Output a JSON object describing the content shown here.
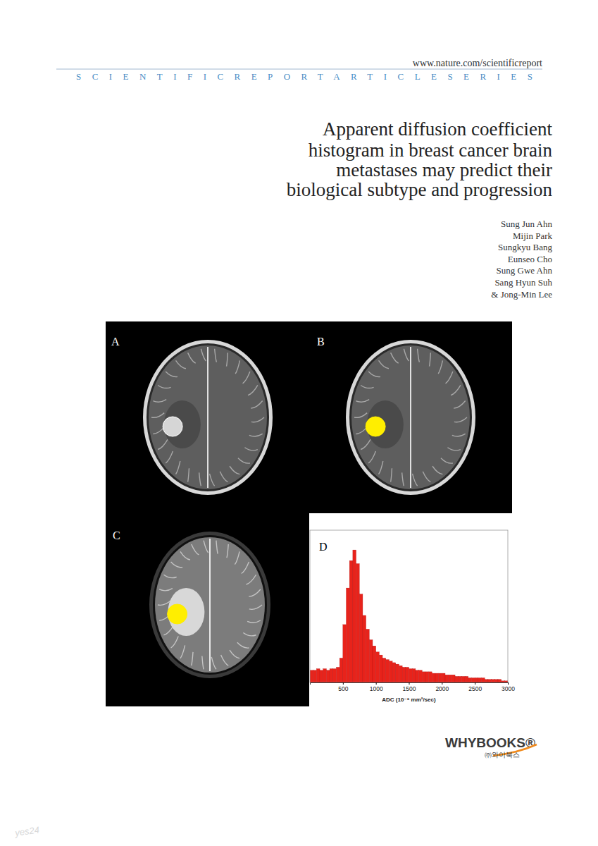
{
  "header": {
    "url": "www.nature.com/scientificreport",
    "series": "SCIENTIFICREPORTARTICLESERIES"
  },
  "title": [
    "Apparent diffusion coefficient",
    "histogram in breast cancer brain",
    "metastases may predict their",
    "biological subtype and progression"
  ],
  "authors": [
    "Sung Jun Ahn",
    "Mijin Park",
    "Sungkyu Bang",
    "Eunseo Cho",
    "Sung Gwe Ahn",
    "Sang Hyun Suh",
    "& Jong-Min Lee"
  ],
  "figure": {
    "panel_labels": [
      "A",
      "B",
      "C",
      "D"
    ]
  },
  "chart_data": {
    "type": "histogram",
    "x_label": "ADC (10⁻⁶ mm²/sec)",
    "bins": [
      0,
      50,
      100,
      150,
      200,
      250,
      300,
      350,
      400,
      450,
      500,
      550,
      600,
      650,
      700,
      750,
      800,
      850,
      900,
      950,
      1000,
      1050,
      1100,
      1150,
      1200,
      1250,
      1300,
      1350,
      1400,
      1450,
      1500,
      1550,
      1600,
      1650,
      1700,
      1750,
      1800,
      1850,
      1900,
      1950,
      2000,
      2050,
      2100,
      2150,
      2200,
      2250,
      2300,
      2350,
      2400,
      2450,
      2500,
      2550,
      2600,
      2650,
      2700,
      2750,
      2800,
      2850,
      2900,
      2950,
      3000
    ],
    "values": [
      8,
      8,
      9,
      8,
      9,
      8,
      9,
      9,
      10,
      16,
      38,
      62,
      80,
      87,
      78,
      58,
      44,
      35,
      28,
      24,
      20,
      18,
      16,
      15,
      14,
      13,
      12,
      11,
      10,
      10,
      9,
      9,
      8,
      8,
      7,
      7,
      7,
      6,
      6,
      6,
      6,
      5,
      5,
      5,
      4,
      4,
      4,
      4,
      3,
      3,
      3,
      3,
      3,
      2,
      2,
      2,
      2,
      2,
      1,
      1
    ],
    "color": "#e8231b",
    "xlim": [
      0,
      3000
    ],
    "xticks": [
      500,
      1000,
      1500,
      2000,
      2500,
      3000
    ],
    "ylim": [
      0,
      100
    ],
    "tick_labels": "x"
  },
  "publisher": {
    "name": "WHYBOOKS®",
    "name_korean": "㈜와이북스"
  },
  "watermark": "yes24"
}
